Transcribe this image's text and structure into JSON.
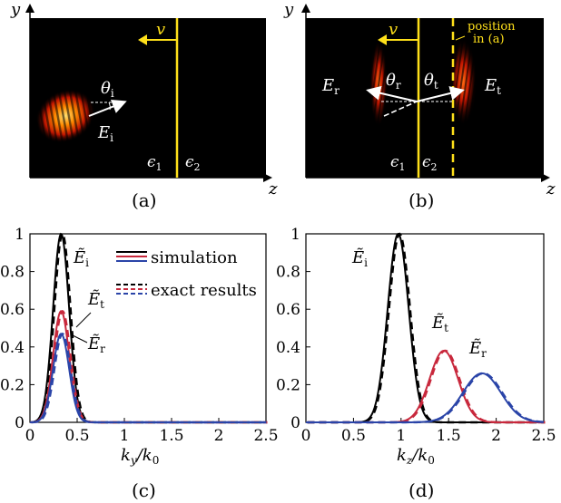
{
  "panels": {
    "a": {
      "label": "(a)",
      "axis_y": "y",
      "axis_z": "z",
      "velocity": "v",
      "angle_i": "θ",
      "angle_i_sub": "i",
      "field_i": "E",
      "field_i_sub": "i",
      "eps1": "ϵ",
      "eps1_sub": "1",
      "eps2": "ϵ",
      "eps2_sub": "2"
    },
    "b": {
      "label": "(b)",
      "axis_y": "y",
      "axis_z": "z",
      "velocity": "v",
      "position_line1": "position",
      "position_line2": "in (a)",
      "field_r": "E",
      "field_r_sub": "r",
      "field_t": "E",
      "field_t_sub": "t",
      "angle_r": "θ",
      "angle_r_sub": "r",
      "angle_t": "θ",
      "angle_t_sub": "t",
      "eps1": "ϵ",
      "eps1_sub": "1",
      "eps2": "ϵ",
      "eps2_sub": "2"
    },
    "c": {
      "label": "(c)",
      "xlabel": "k",
      "xlabel_sub": "y",
      "xlabel_den": "/k",
      "xlabel_den_sub": "0"
    },
    "d": {
      "label": "(d)",
      "xlabel": "k",
      "xlabel_sub": "z",
      "xlabel_den": "/k",
      "xlabel_den_sub": "0"
    }
  },
  "legend": {
    "simulation": "simulation",
    "exact": "exact results"
  },
  "curve_labels": {
    "i": "i",
    "t": "t",
    "r": "r",
    "E": "E"
  },
  "ticks": {
    "x": [
      "0",
      "0.5",
      "1",
      "1.5",
      "2",
      "2.5"
    ],
    "y_c": [
      "0",
      "0.2",
      "0.4",
      "0.6",
      "0.8",
      "1"
    ],
    "y_d": [
      "0",
      "0.2",
      "0.4",
      "0.6",
      "0.8",
      "1"
    ]
  },
  "colors": {
    "incident": "#000000",
    "transmitted": "#c8283c",
    "reflected": "#2a44a8",
    "interface": "#ffe01a",
    "background": "#000000"
  },
  "chart_data": [
    {
      "type": "line",
      "panel": "c",
      "xlim": [
        0,
        2.5
      ],
      "ylim": [
        0,
        1
      ],
      "series": [
        {
          "name": "Ẽi",
          "center": 0.33,
          "width": 0.085,
          "peak": 1.0
        },
        {
          "name": "Ẽt",
          "center": 0.33,
          "width": 0.085,
          "peak": 0.59
        },
        {
          "name": "Ẽr",
          "center": 0.33,
          "width": 0.085,
          "peak": 0.47
        }
      ]
    },
    {
      "type": "line",
      "panel": "d",
      "xlim": [
        0,
        2.5
      ],
      "ylim": [
        0,
        1
      ],
      "series": [
        {
          "name": "Ẽi",
          "center": 0.97,
          "width": 0.11,
          "peak": 1.0
        },
        {
          "name": "Ẽt",
          "center": 1.45,
          "width": 0.15,
          "peak": 0.38
        },
        {
          "name": "Ẽr",
          "center": 1.85,
          "width": 0.2,
          "peak": 0.26
        }
      ]
    }
  ]
}
